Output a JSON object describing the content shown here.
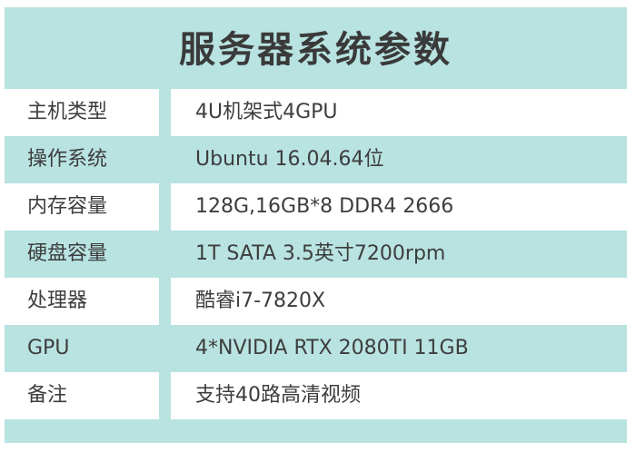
{
  "title": "服务器系统参数",
  "table": {
    "rows": [
      [
        "主机类型",
        "4U机架式4GPU"
      ],
      [
        "操作系统",
        "Ubuntu 16.04.64位"
      ],
      [
        "内存容量",
        "128G,16GB*8 DDR4 2666"
      ],
      [
        "硬盘容量",
        "1T SATA 3.5英寸7200rpm"
      ],
      [
        "处理器",
        "酷睿i7-7820X"
      ],
      [
        "GPU",
        "4*NVIDIA RTX 2080TI 11GB"
      ],
      [
        "备注",
        "支持40路高清视频"
      ]
    ]
  }
}
